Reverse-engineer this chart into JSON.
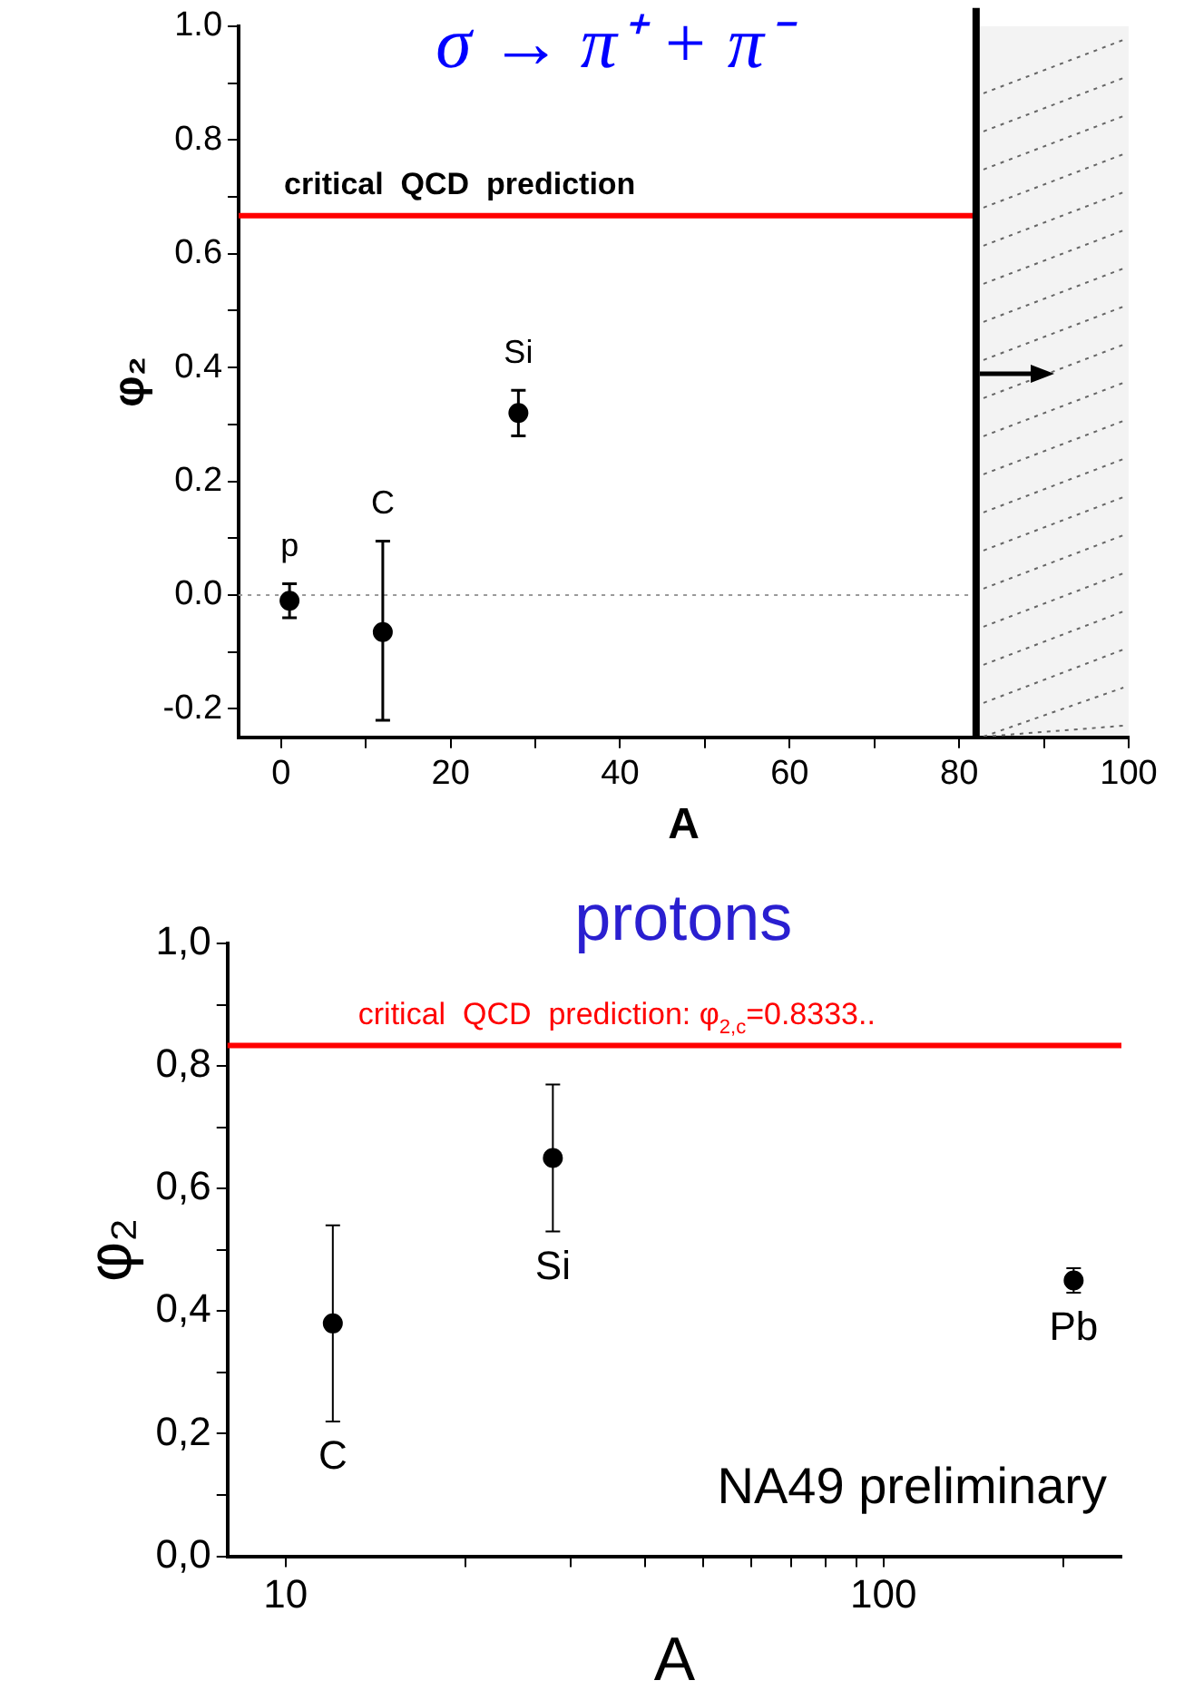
{
  "chart_data": [
    {
      "type": "scatter",
      "title": "σ → π⁺ + π⁻",
      "xlabel": "A",
      "ylabel": "φ₂",
      "xlim": [
        -5,
        100
      ],
      "ylim": [
        -0.25,
        1.0
      ],
      "xticks": [
        0,
        {
          "value": 10,
          "label": null
        },
        20,
        {
          "value": 30,
          "label": null
        },
        40,
        {
          "value": 50,
          "label": null
        },
        60,
        {
          "value": 70,
          "label": null
        },
        80,
        {
          "value": 90,
          "label": null
        },
        100
      ],
      "yticks": [
        {
          "value": -0.2,
          "label": "-0.2"
        },
        {
          "value": -0.1,
          "label": null
        },
        {
          "value": 0,
          "label": "0.0"
        },
        {
          "value": 0.1,
          "label": null
        },
        {
          "value": 0.2,
          "label": "0.2"
        },
        {
          "value": 0.3,
          "label": null
        },
        {
          "value": 0.4,
          "label": "0.4"
        },
        {
          "value": 0.5,
          "label": null
        },
        {
          "value": 0.6,
          "label": "0.6"
        },
        {
          "value": 0.7,
          "label": null
        },
        {
          "value": 0.8,
          "label": "0.8"
        },
        {
          "value": 0.9,
          "label": null
        },
        {
          "value": 1.0,
          "label": "1.0"
        }
      ],
      "series": [
        {
          "color": "#000000",
          "x": [
            1,
            12,
            28
          ],
          "values": [
            -0.01,
            -0.065,
            0.32
          ],
          "errors": [
            [
              -0.04,
              0.02
            ],
            [
              -0.22,
              0.095
            ],
            [
              0.28,
              0.36
            ]
          ]
        }
      ],
      "ref_lines": [
        {
          "axis": "y",
          "value": 0.667,
          "label": "critical  QCD  prediction",
          "color": "#ff0000"
        },
        {
          "axis": "y",
          "value": 0,
          "color": "#999999",
          "line_style": "dotted"
        },
        {
          "axis": "x",
          "value": 82,
          "color": "#000000"
        }
      ],
      "bands": [
        {
          "axis": "x",
          "from": 82,
          "to": 100,
          "color": "#666666"
        }
      ],
      "annotations": [
        {
          "text": "p",
          "x": 1,
          "y": 0.02
        },
        {
          "text": "C",
          "x": 12,
          "y": 0.095
        },
        {
          "text": "Si",
          "x": 28,
          "y": 0.36
        }
      ],
      "marker": "circle",
      "grid": false,
      "legend": false
    },
    {
      "type": "scatter",
      "title": "protons",
      "xlabel": "A",
      "ylabel": "φ₂",
      "log": "x",
      "xlim": [
        8,
        250
      ],
      "ylim": [
        0,
        1.0
      ],
      "xticks": [
        10,
        {
          "value": 20,
          "label": null
        },
        {
          "value": 30,
          "label": null
        },
        {
          "value": 40,
          "label": null
        },
        {
          "value": 50,
          "label": null
        },
        {
          "value": 60,
          "label": null
        },
        {
          "value": 70,
          "label": null
        },
        {
          "value": 80,
          "label": null
        },
        {
          "value": 90,
          "label": null
        },
        100,
        {
          "value": 200,
          "label": null
        }
      ],
      "yticks": [
        {
          "value": 0,
          "label": "0,0"
        },
        {
          "value": 0.1,
          "label": null
        },
        {
          "value": 0.2,
          "label": "0,2"
        },
        {
          "value": 0.3,
          "label": null
        },
        {
          "value": 0.4,
          "label": "0,4"
        },
        {
          "value": 0.5,
          "label": null
        },
        {
          "value": 0.6,
          "label": "0,6"
        },
        {
          "value": 0.7,
          "label": null
        },
        {
          "value": 0.8,
          "label": "0,8"
        },
        {
          "value": 0.9,
          "label": null
        },
        {
          "value": 1.0,
          "label": "1,0"
        }
      ],
      "series": [
        {
          "color": "#000000",
          "x": [
            12,
            28,
            208
          ],
          "values": [
            0.38,
            0.65,
            0.45
          ],
          "errors": [
            [
              0.22,
              0.54
            ],
            [
              0.53,
              0.77
            ],
            [
              0.43,
              0.47
            ]
          ]
        }
      ],
      "ref_lines": [
        {
          "axis": "y",
          "value": 0.8333,
          "label": "critical  QCD  prediction: φ$_{2,c}$=0.8333..",
          "color": "#ff0000"
        }
      ],
      "annotations": [
        {
          "text": "C",
          "x": 12,
          "y": 0.22
        },
        {
          "text": "Si",
          "x": 28,
          "y": 0.53
        },
        {
          "text": "Pb",
          "x": 208,
          "y": 0.43
        },
        "NA49 preliminary"
      ],
      "marker": "circle",
      "grid": false,
      "legend": false
    }
  ]
}
